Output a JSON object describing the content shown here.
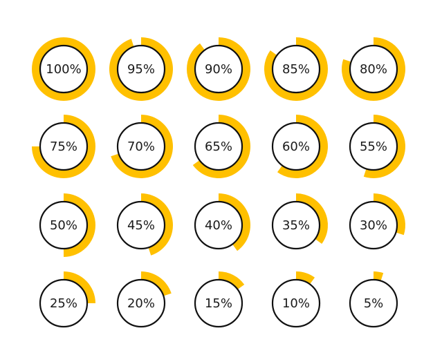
{
  "colors": {
    "background": "#ffffff",
    "progress_fill": "#FFC000",
    "inner_circle_fill": "#ffffff",
    "inner_circle_stroke": "#111111",
    "label_text": "#1a1a1a"
  },
  "rings": [
    {
      "label": "100%",
      "progress": 1.0
    },
    {
      "label": "95%",
      "progress": 0.95
    },
    {
      "label": "90%",
      "progress": 0.9
    },
    {
      "label": "85%",
      "progress": 0.85
    },
    {
      "label": "80%",
      "progress": 0.8
    },
    {
      "label": "75%",
      "progress": 0.75
    },
    {
      "label": "70%",
      "progress": 0.7
    },
    {
      "label": "65%",
      "progress": 0.65
    },
    {
      "label": "60%",
      "progress": 0.6
    },
    {
      "label": "55%",
      "progress": 0.55
    },
    {
      "label": "50%",
      "progress": 0.5
    },
    {
      "label": "45%",
      "progress": 0.45
    },
    {
      "label": "40%",
      "progress": 0.4
    },
    {
      "label": "35%",
      "progress": 0.35
    },
    {
      "label": "30%",
      "progress": 0.3
    },
    {
      "label": "25%",
      "progress": 0.25
    },
    {
      "label": "20%",
      "progress": 0.2
    },
    {
      "label": "15%",
      "progress": 0.15
    },
    {
      "label": "10%",
      "progress": 0.1
    },
    {
      "label": "5%",
      "progress": 0.05
    }
  ]
}
